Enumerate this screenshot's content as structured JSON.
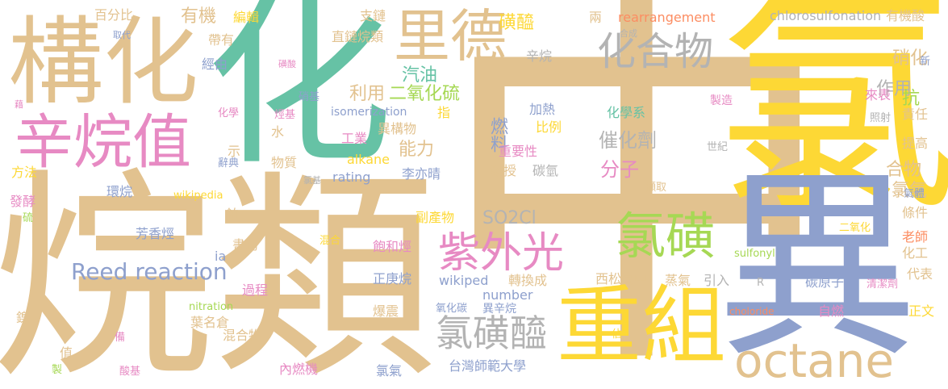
{
  "palette": {
    "tan": "#e2c28f",
    "yellow": "#fdd835",
    "blue": "#8ea0cd",
    "green": "#66c2a5",
    "pink": "#e78ac3",
    "lime": "#a6d854",
    "orange": "#fc8d62",
    "gray": "#b3b3b3"
  },
  "words": [
    {
      "text": "中",
      "color": "tan"
    },
    {
      "text": "氯",
      "color": "yellow"
    },
    {
      "text": "異",
      "color": "blue"
    },
    {
      "text": "烷類",
      "color": "tan"
    },
    {
      "text": "化",
      "color": "green"
    },
    {
      "text": "構化",
      "color": "tan"
    },
    {
      "text": "里德",
      "color": "tan"
    },
    {
      "text": "辛烷值",
      "color": "pink"
    },
    {
      "text": "重組",
      "color": "yellow"
    },
    {
      "text": "octane",
      "color": "tan"
    },
    {
      "text": "化合物",
      "color": "gray"
    },
    {
      "text": "氯磺",
      "color": "lime"
    },
    {
      "text": "紫外光",
      "color": "pink"
    },
    {
      "text": "氯磺醯",
      "color": "gray"
    },
    {
      "text": "Reed reaction",
      "color": "blue"
    },
    {
      "text": "磺醯",
      "color": "yellow"
    },
    {
      "text": "硝化",
      "color": "tan"
    },
    {
      "text": "汽油",
      "color": "green"
    },
    {
      "text": "利用",
      "color": "tan"
    },
    {
      "text": "二氧化硫",
      "color": "lime"
    },
    {
      "text": "燃料",
      "color": "blue"
    },
    {
      "text": "能力",
      "color": "tan"
    },
    {
      "text": "催化劑",
      "color": "gray"
    },
    {
      "text": "分子",
      "color": "pink"
    },
    {
      "text": "氯氣",
      "color": "tan"
    },
    {
      "text": "SO2Cl",
      "color": "gray"
    },
    {
      "text": "作用",
      "color": "gray"
    },
    {
      "text": "抗",
      "color": "lime"
    },
    {
      "text": "合物",
      "color": "tan"
    },
    {
      "text": "有機",
      "color": "tan"
    },
    {
      "text": "百分比",
      "color": "tan"
    },
    {
      "text": "編輯",
      "color": "yellow"
    },
    {
      "text": "支鏈",
      "color": "tan"
    },
    {
      "text": "rearrangement",
      "color": "orange"
    },
    {
      "text": "chlorosulfonation",
      "color": "gray"
    },
    {
      "text": "有機酸",
      "color": "tan"
    },
    {
      "text": "取代",
      "color": "blue"
    },
    {
      "text": "帶有",
      "color": "tan"
    },
    {
      "text": "直鏈烷類",
      "color": "tan"
    },
    {
      "text": "兩",
      "color": "tan"
    },
    {
      "text": "合成",
      "color": "gray"
    },
    {
      "text": "辛烷",
      "color": "gray"
    },
    {
      "text": "經由",
      "color": "blue"
    },
    {
      "text": "磺酸",
      "color": "pink"
    },
    {
      "text": "新",
      "color": "blue"
    },
    {
      "text": "藉",
      "color": "pink"
    },
    {
      "text": "化學",
      "color": "pink"
    },
    {
      "text": "硝基",
      "color": "blue"
    },
    {
      "text": "isomerization",
      "color": "blue"
    },
    {
      "text": "指",
      "color": "yellow"
    },
    {
      "text": "加熱",
      "color": "blue"
    },
    {
      "text": "化學系",
      "color": "green"
    },
    {
      "text": "來表",
      "color": "pink"
    },
    {
      "text": "製造",
      "color": "pink"
    },
    {
      "text": "責任",
      "color": "tan"
    },
    {
      "text": "烴基",
      "color": "pink"
    },
    {
      "text": "水",
      "color": "tan"
    },
    {
      "text": "異構物",
      "color": "tan"
    },
    {
      "text": "比例",
      "color": "yellow"
    },
    {
      "text": "照射",
      "color": "gray"
    },
    {
      "text": "工業",
      "color": "pink"
    },
    {
      "text": "重要性",
      "color": "pink"
    },
    {
      "text": "世紀",
      "color": "gray"
    },
    {
      "text": "提高",
      "color": "tan"
    },
    {
      "text": "示",
      "color": "tan"
    },
    {
      "text": "方法",
      "color": "yellow"
    },
    {
      "text": "辭典",
      "color": "blue"
    },
    {
      "text": "物質",
      "color": "tan"
    },
    {
      "text": "alkane",
      "color": "yellow"
    },
    {
      "text": "rating",
      "color": "blue"
    },
    {
      "text": "李亦晴",
      "color": "blue"
    },
    {
      "text": "教授",
      "color": "tan"
    },
    {
      "text": "碳氫",
      "color": "gray"
    },
    {
      "text": "擷取",
      "color": "tan"
    },
    {
      "text": "氯基",
      "color": "gray"
    },
    {
      "text": "環烷",
      "color": "blue"
    },
    {
      "text": "wikipedia",
      "color": "yellow"
    },
    {
      "text": "發酵",
      "color": "pink"
    },
    {
      "text": "硫",
      "color": "lime"
    },
    {
      "text": "鉑",
      "color": "tan"
    },
    {
      "text": "副產物",
      "color": "yellow"
    },
    {
      "text": "氣體",
      "color": "blue"
    },
    {
      "text": "條件",
      "color": "tan"
    },
    {
      "text": "芳香烴",
      "color": "blue"
    },
    {
      "text": "書局",
      "color": "tan"
    },
    {
      "text": "ia",
      "color": "blue"
    },
    {
      "text": "混合",
      "color": "yellow"
    },
    {
      "text": "飽和烴",
      "color": "pink"
    },
    {
      "text": "正庚烷",
      "color": "blue"
    },
    {
      "text": "sulfonyl",
      "color": "lime"
    },
    {
      "text": "二氧化",
      "color": "yellow"
    },
    {
      "text": "老師",
      "color": "orange"
    },
    {
      "text": "化工",
      "color": "tan"
    },
    {
      "text": "碳原子",
      "color": "blue"
    },
    {
      "text": "代表",
      "color": "tan"
    },
    {
      "text": "過程",
      "color": "pink"
    },
    {
      "text": "wikiped",
      "color": "blue"
    },
    {
      "text": "number",
      "color": "blue"
    },
    {
      "text": "轉換成",
      "color": "tan"
    },
    {
      "text": "西松高中",
      "color": "tan"
    },
    {
      "text": "蒸氣",
      "color": "tan"
    },
    {
      "text": "引入",
      "color": "gray"
    },
    {
      "text": "R",
      "color": "gray"
    },
    {
      "text": "清潔劑",
      "color": "pink"
    },
    {
      "text": "鎳",
      "color": "tan"
    },
    {
      "text": "nitration",
      "color": "lime"
    },
    {
      "text": "葉名倉",
      "color": "tan"
    },
    {
      "text": "氧化碳",
      "color": "blue"
    },
    {
      "text": "異辛烷",
      "color": "blue"
    },
    {
      "text": "爆震",
      "color": "tan"
    },
    {
      "text": "choloride",
      "color": "orange"
    },
    {
      "text": "自燃",
      "color": "pink"
    },
    {
      "text": "正文",
      "color": "yellow"
    },
    {
      "text": "值",
      "color": "tan"
    },
    {
      "text": "備",
      "color": "pink"
    },
    {
      "text": "混合物",
      "color": "tan"
    },
    {
      "text": "佔",
      "color": "yellow"
    },
    {
      "text": "製",
      "color": "lime"
    },
    {
      "text": "酸基",
      "color": "pink"
    },
    {
      "text": "內燃機",
      "color": "pink"
    },
    {
      "text": "氯氣",
      "color": "blue"
    },
    {
      "text": "台灣師範大學",
      "color": "blue"
    }
  ]
}
